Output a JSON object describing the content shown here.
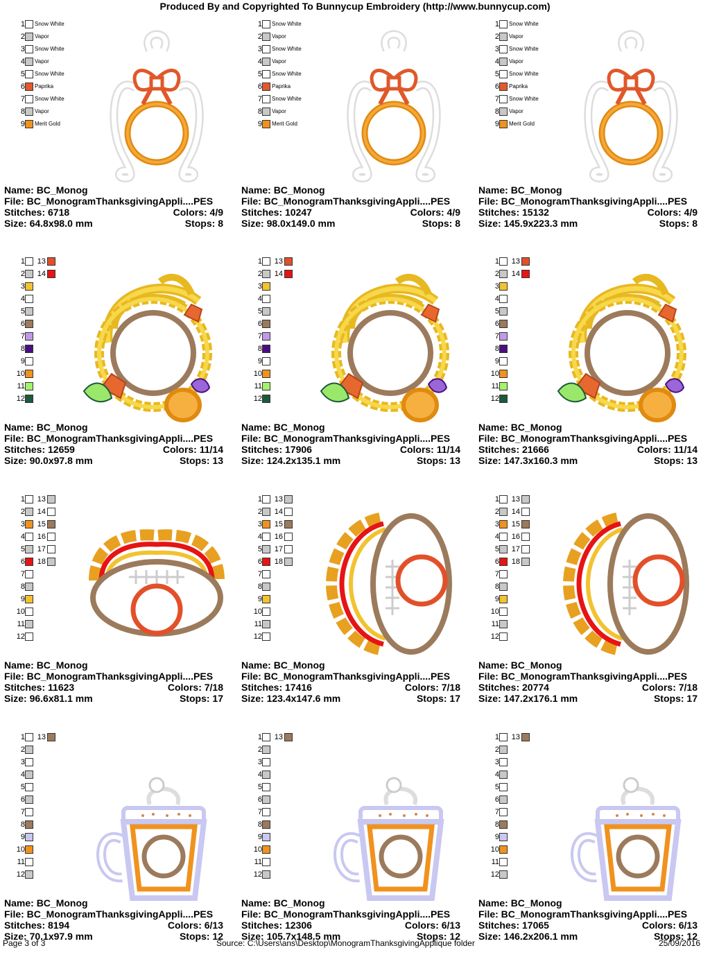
{
  "header": "Produced By and Copyrighted To Bunnycup Embroidery (http://www.bunnycup.com)",
  "labels": {
    "name": "Name:",
    "file": "File:",
    "stitches": "Stitches:",
    "colors": "Colors:",
    "size": "Size:",
    "stops": "Stops:"
  },
  "color_hex": {
    "Snow White": "#ffffff",
    "Vapor": "#c8c8c8",
    "Paprika": "#e8572a",
    "Merit Gold": "#f0921e",
    "gold": "#f2c230",
    "brown": "#9c7a5c",
    "lilac": "#c09ae8",
    "purple": "#4a0e82",
    "orange": "#f0921e",
    "lime": "#a4f26e",
    "darkgreen": "#1b5a3a",
    "rust": "#e2502a",
    "red": "#e61414",
    "lavender": "#c8c8f2"
  },
  "designs": [
    {
      "name": "BC_Monog",
      "file": "BC_MonogramThanksgivingAppli....PES",
      "stitches": "6718",
      "colors": "4/9",
      "size": "64.8x98.0 mm",
      "stops": "8",
      "art": "ornament",
      "legend": [
        {
          "n": "1",
          "c": "Snow White",
          "label": "Snow White"
        },
        {
          "n": "2",
          "c": "Vapor",
          "label": "Vapor"
        },
        {
          "n": "3",
          "c": "Snow White",
          "label": "Snow White"
        },
        {
          "n": "4",
          "c": "Vapor",
          "label": "Vapor"
        },
        {
          "n": "5",
          "c": "Snow White",
          "label": "Snow White"
        },
        {
          "n": "6",
          "c": "Paprika",
          "label": "Paprika"
        },
        {
          "n": "7",
          "c": "Snow White",
          "label": "Snow White"
        },
        {
          "n": "8",
          "c": "Vapor",
          "label": "Vapor"
        },
        {
          "n": "9",
          "c": "Merit Gold",
          "label": "Merit Gold"
        }
      ]
    },
    {
      "name": "BC_Monog",
      "file": "BC_MonogramThanksgivingAppli....PES",
      "stitches": "10247",
      "colors": "4/9",
      "size": "98.0x149.0 mm",
      "stops": "8",
      "art": "ornament",
      "legend": [
        {
          "n": "1",
          "c": "Snow White",
          "label": "Snow White"
        },
        {
          "n": "2",
          "c": "Vapor",
          "label": "Vapor"
        },
        {
          "n": "3",
          "c": "Snow White",
          "label": "Snow White"
        },
        {
          "n": "4",
          "c": "Vapor",
          "label": "Vapor"
        },
        {
          "n": "5",
          "c": "Snow White",
          "label": "Snow White"
        },
        {
          "n": "6",
          "c": "Paprika",
          "label": "Paprika"
        },
        {
          "n": "7",
          "c": "Snow White",
          "label": "Snow White"
        },
        {
          "n": "8",
          "c": "Vapor",
          "label": "Vapor"
        },
        {
          "n": "9",
          "c": "Merit Gold",
          "label": "Merit Gold"
        }
      ]
    },
    {
      "name": "BC_Monog",
      "file": "BC_MonogramThanksgivingAppli....PES",
      "stitches": "15132",
      "colors": "4/9",
      "size": "145.9x223.3 mm",
      "stops": "8",
      "art": "ornament",
      "legend": [
        {
          "n": "1",
          "c": "Snow White",
          "label": "Snow White"
        },
        {
          "n": "2",
          "c": "Vapor",
          "label": "Vapor"
        },
        {
          "n": "3",
          "c": "Snow White",
          "label": "Snow White"
        },
        {
          "n": "4",
          "c": "Vapor",
          "label": "Vapor"
        },
        {
          "n": "5",
          "c": "Snow White",
          "label": "Snow White"
        },
        {
          "n": "6",
          "c": "Paprika",
          "label": "Paprika"
        },
        {
          "n": "7",
          "c": "Snow White",
          "label": "Snow White"
        },
        {
          "n": "8",
          "c": "Vapor",
          "label": "Vapor"
        },
        {
          "n": "9",
          "c": "Merit Gold",
          "label": "Merit Gold"
        }
      ]
    },
    {
      "name": "BC_Monog",
      "file": "BC_MonogramThanksgivingAppli....PES",
      "stitches": "12659",
      "colors": "11/14",
      "size": "90.0x97.8 mm",
      "stops": "13",
      "art": "cornucopia",
      "legend": [
        {
          "n": "1",
          "c": "Snow White",
          "n2": "13",
          "c2": "rust"
        },
        {
          "n": "2",
          "c": "Vapor",
          "n2": "14",
          "c2": "red"
        },
        {
          "n": "3",
          "c": "gold"
        },
        {
          "n": "4",
          "c": "Snow White"
        },
        {
          "n": "5",
          "c": "Vapor"
        },
        {
          "n": "6",
          "c": "brown"
        },
        {
          "n": "7",
          "c": "lilac"
        },
        {
          "n": "8",
          "c": "purple"
        },
        {
          "n": "9",
          "c": "Snow White"
        },
        {
          "n": "10",
          "c": "orange"
        },
        {
          "n": "11",
          "c": "lime"
        },
        {
          "n": "12",
          "c": "darkgreen"
        }
      ]
    },
    {
      "name": "BC_Monog",
      "file": "BC_MonogramThanksgivingAppli....PES",
      "stitches": "17906",
      "colors": "11/14",
      "size": "124.2x135.1 mm",
      "stops": "13",
      "art": "cornucopia",
      "legend": [
        {
          "n": "1",
          "c": "Snow White",
          "n2": "13",
          "c2": "rust"
        },
        {
          "n": "2",
          "c": "Vapor",
          "n2": "14",
          "c2": "red"
        },
        {
          "n": "3",
          "c": "gold"
        },
        {
          "n": "4",
          "c": "Snow White"
        },
        {
          "n": "5",
          "c": "Vapor"
        },
        {
          "n": "6",
          "c": "brown"
        },
        {
          "n": "7",
          "c": "lilac"
        },
        {
          "n": "8",
          "c": "purple"
        },
        {
          "n": "9",
          "c": "Snow White"
        },
        {
          "n": "10",
          "c": "orange"
        },
        {
          "n": "11",
          "c": "lime"
        },
        {
          "n": "12",
          "c": "darkgreen"
        }
      ]
    },
    {
      "name": "BC_Monog",
      "file": "BC_MonogramThanksgivingAppli....PES",
      "stitches": "21666",
      "colors": "11/14",
      "size": "147.3x160.3 mm",
      "stops": "13",
      "art": "cornucopia",
      "legend": [
        {
          "n": "1",
          "c": "Snow White",
          "n2": "13",
          "c2": "rust"
        },
        {
          "n": "2",
          "c": "Vapor",
          "n2": "14",
          "c2": "red"
        },
        {
          "n": "3",
          "c": "gold"
        },
        {
          "n": "4",
          "c": "Snow White"
        },
        {
          "n": "5",
          "c": "Vapor"
        },
        {
          "n": "6",
          "c": "brown"
        },
        {
          "n": "7",
          "c": "lilac"
        },
        {
          "n": "8",
          "c": "purple"
        },
        {
          "n": "9",
          "c": "Snow White"
        },
        {
          "n": "10",
          "c": "orange"
        },
        {
          "n": "11",
          "c": "lime"
        },
        {
          "n": "12",
          "c": "darkgreen"
        }
      ]
    },
    {
      "name": "BC_Monog",
      "file": "BC_MonogramThanksgivingAppli....PES",
      "stitches": "11623",
      "colors": "7/18",
      "size": "96.6x81.1 mm",
      "stops": "17",
      "art": "football-h",
      "legend": [
        {
          "n": "1",
          "c": "Snow White",
          "n2": "13",
          "c2": "Vapor"
        },
        {
          "n": "2",
          "c": "Vapor",
          "n2": "14",
          "c2": "Snow White"
        },
        {
          "n": "3",
          "c": "orange",
          "n2": "15",
          "c2": "brown"
        },
        {
          "n": "4",
          "c": "Snow White",
          "n2": "16",
          "c2": "Snow White"
        },
        {
          "n": "5",
          "c": "Vapor",
          "n2": "17",
          "c2": "Snow White"
        },
        {
          "n": "6",
          "c": "red",
          "n2": "18",
          "c2": "Vapor"
        },
        {
          "n": "7",
          "c": "Snow White"
        },
        {
          "n": "8",
          "c": "Vapor"
        },
        {
          "n": "9",
          "c": "gold"
        },
        {
          "n": "10",
          "c": "Snow White"
        },
        {
          "n": "11",
          "c": "Vapor"
        },
        {
          "n": "12",
          "c": "Snow White"
        }
      ]
    },
    {
      "name": "BC_Monog",
      "file": "BC_MonogramThanksgivingAppli....PES",
      "stitches": "17416",
      "colors": "7/18",
      "size": "123.4x147.6 mm",
      "stops": "17",
      "art": "football-v",
      "legend": [
        {
          "n": "1",
          "c": "Snow White",
          "n2": "13",
          "c2": "Vapor"
        },
        {
          "n": "2",
          "c": "Vapor",
          "n2": "14",
          "c2": "Snow White"
        },
        {
          "n": "3",
          "c": "orange",
          "n2": "15",
          "c2": "brown"
        },
        {
          "n": "4",
          "c": "Snow White",
          "n2": "16",
          "c2": "Snow White"
        },
        {
          "n": "5",
          "c": "Vapor",
          "n2": "17",
          "c2": "Snow White"
        },
        {
          "n": "6",
          "c": "red",
          "n2": "18",
          "c2": "Vapor"
        },
        {
          "n": "7",
          "c": "Snow White"
        },
        {
          "n": "8",
          "c": "Vapor"
        },
        {
          "n": "9",
          "c": "gold"
        },
        {
          "n": "10",
          "c": "Snow White"
        },
        {
          "n": "11",
          "c": "Vapor"
        },
        {
          "n": "12",
          "c": "Snow White"
        }
      ]
    },
    {
      "name": "BC_Monog",
      "file": "BC_MonogramThanksgivingAppli....PES",
      "stitches": "20774",
      "colors": "7/18",
      "size": "147.2x176.1 mm",
      "stops": "17",
      "art": "football-v",
      "legend": [
        {
          "n": "1",
          "c": "Snow White",
          "n2": "13",
          "c2": "Vapor"
        },
        {
          "n": "2",
          "c": "Vapor",
          "n2": "14",
          "c2": "Snow White"
        },
        {
          "n": "3",
          "c": "orange",
          "n2": "15",
          "c2": "brown"
        },
        {
          "n": "4",
          "c": "Snow White",
          "n2": "16",
          "c2": "Snow White"
        },
        {
          "n": "5",
          "c": "Vapor",
          "n2": "17",
          "c2": "Snow White"
        },
        {
          "n": "6",
          "c": "red",
          "n2": "18",
          "c2": "Vapor"
        },
        {
          "n": "7",
          "c": "Snow White"
        },
        {
          "n": "8",
          "c": "Vapor"
        },
        {
          "n": "9",
          "c": "gold"
        },
        {
          "n": "10",
          "c": "Snow White"
        },
        {
          "n": "11",
          "c": "Vapor"
        },
        {
          "n": "12",
          "c": "Snow White"
        }
      ]
    },
    {
      "name": "BC_Monog",
      "file": "BC_MonogramThanksgivingAppli....PES",
      "stitches": "8194",
      "colors": "6/13",
      "size": "70.1x97.9 mm",
      "stops": "12",
      "art": "mug",
      "legend": [
        {
          "n": "1",
          "c": "Snow White",
          "n2": "13",
          "c2": "brown"
        },
        {
          "n": "2",
          "c": "Vapor"
        },
        {
          "n": "3",
          "c": "Snow White"
        },
        {
          "n": "4",
          "c": "Vapor"
        },
        {
          "n": "5",
          "c": "Snow White"
        },
        {
          "n": "6",
          "c": "Vapor"
        },
        {
          "n": "7",
          "c": "Snow White"
        },
        {
          "n": "8",
          "c": "brown"
        },
        {
          "n": "9",
          "c": "lavender"
        },
        {
          "n": "10",
          "c": "orange"
        },
        {
          "n": "11",
          "c": "Snow White"
        },
        {
          "n": "12",
          "c": "Vapor"
        }
      ]
    },
    {
      "name": "BC_Monog",
      "file": "BC_MonogramThanksgivingAppli....PES",
      "stitches": "12306",
      "colors": "6/13",
      "size": "105.7x148.5 mm",
      "stops": "12",
      "art": "mug",
      "legend": [
        {
          "n": "1",
          "c": "Snow White",
          "n2": "13",
          "c2": "brown"
        },
        {
          "n": "2",
          "c": "Vapor"
        },
        {
          "n": "3",
          "c": "Snow White"
        },
        {
          "n": "4",
          "c": "Vapor"
        },
        {
          "n": "5",
          "c": "Snow White"
        },
        {
          "n": "6",
          "c": "Vapor"
        },
        {
          "n": "7",
          "c": "Snow White"
        },
        {
          "n": "8",
          "c": "brown"
        },
        {
          "n": "9",
          "c": "lavender"
        },
        {
          "n": "10",
          "c": "orange"
        },
        {
          "n": "11",
          "c": "Snow White"
        },
        {
          "n": "12",
          "c": "Vapor"
        }
      ]
    },
    {
      "name": "BC_Monog",
      "file": "BC_MonogramThanksgivingAppli....PES",
      "stitches": "17065",
      "colors": "6/13",
      "size": "146.2x206.1 mm",
      "stops": "12",
      "art": "mug",
      "legend": [
        {
          "n": "1",
          "c": "Snow White",
          "n2": "13",
          "c2": "brown"
        },
        {
          "n": "2",
          "c": "Vapor"
        },
        {
          "n": "3",
          "c": "Snow White"
        },
        {
          "n": "4",
          "c": "Vapor"
        },
        {
          "n": "5",
          "c": "Snow White"
        },
        {
          "n": "6",
          "c": "Vapor"
        },
        {
          "n": "7",
          "c": "Snow White"
        },
        {
          "n": "8",
          "c": "brown"
        },
        {
          "n": "9",
          "c": "lavender"
        },
        {
          "n": "10",
          "c": "orange"
        },
        {
          "n": "11",
          "c": "Snow White"
        },
        {
          "n": "12",
          "c": "Vapor"
        }
      ]
    }
  ],
  "footer": {
    "page": "Page 3 of 3",
    "source": "Source: C:\\Users\\ans\\Desktop\\MonogramThanksgivingApplique folder",
    "date": "25/09/2016"
  }
}
